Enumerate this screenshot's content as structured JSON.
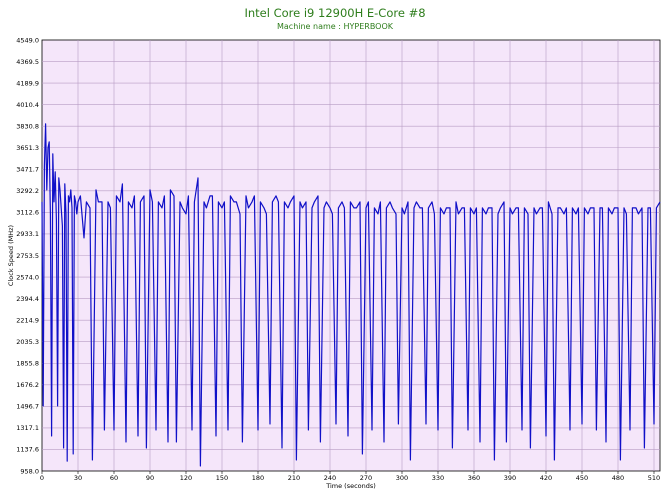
{
  "chart_data": {
    "type": "line",
    "title": "Intel Core i9 12900H E-Core #8",
    "subtitle": "Machine name : HYPERBOOK",
    "xlabel": "Time (seconds)",
    "ylabel": "Clock Speed (MHz)",
    "xlim": [
      0,
      515
    ],
    "ylim": [
      958.0,
      4549.0
    ],
    "xticks": [
      "0",
      "30",
      "60",
      "90",
      "120",
      "150",
      "180",
      "210",
      "240",
      "270",
      "300",
      "330",
      "360",
      "390",
      "420",
      "450",
      "480",
      "510"
    ],
    "yticks": [
      "958.0",
      "1137.6",
      "1317.1",
      "1496.7",
      "1676.2",
      "1855.8",
      "2035.3",
      "2214.9",
      "2394.4",
      "2574.0",
      "2753.5",
      "2933.1",
      "3112.6",
      "3292.2",
      "3471.7",
      "3651.3",
      "3830.8",
      "4010.4",
      "4189.9",
      "4369.5",
      "4549.0"
    ],
    "grid": true,
    "legend": "none",
    "plot_bg": "#f5e6fa",
    "grid_color": "#b89cc4",
    "line_color": "#1010c8",
    "series": [
      {
        "x": [
          0,
          1,
          2,
          3,
          4,
          5,
          6,
          7,
          8,
          9,
          10,
          11,
          12,
          13,
          14,
          15,
          16,
          17,
          18,
          19,
          20,
          21,
          22,
          23,
          24,
          25,
          26,
          27,
          28,
          29,
          30,
          32,
          35,
          37,
          40,
          42,
          45,
          47,
          50,
          52,
          55,
          57,
          60,
          62,
          65,
          67,
          70,
          72,
          75,
          77,
          80,
          82,
          85,
          87,
          90,
          92,
          95,
          97,
          100,
          102,
          105,
          107,
          110,
          112,
          115,
          117,
          120,
          122,
          125,
          127,
          130,
          132,
          135,
          137,
          140,
          142,
          145,
          147,
          150,
          152,
          155,
          157,
          160,
          162,
          165,
          167,
          170,
          172,
          175,
          177,
          180,
          182,
          185,
          187,
          190,
          192,
          195,
          197,
          200,
          202,
          205,
          207,
          210,
          212,
          215,
          217,
          220,
          222,
          225,
          227,
          230,
          232,
          235,
          237,
          240,
          242,
          245,
          247,
          250,
          252,
          255,
          257,
          260,
          262,
          265,
          267,
          270,
          272,
          275,
          277,
          280,
          282,
          285,
          287,
          290,
          292,
          295,
          297,
          300,
          302,
          305,
          307,
          310,
          312,
          315,
          317,
          320,
          322,
          325,
          327,
          330,
          332,
          335,
          337,
          340,
          342,
          345,
          347,
          350,
          352,
          355,
          357,
          360,
          362,
          365,
          367,
          370,
          372,
          375,
          377,
          380,
          382,
          385,
          387,
          390,
          392,
          395,
          397,
          400,
          402,
          405,
          407,
          410,
          412,
          415,
          417,
          420,
          422,
          425,
          427,
          430,
          432,
          435,
          437,
          440,
          442,
          445,
          447,
          450,
          452,
          455,
          457,
          460,
          462,
          465,
          467,
          470,
          472,
          475,
          477,
          480,
          482,
          485,
          487,
          490,
          492,
          495,
          497,
          500,
          502,
          505,
          507,
          510,
          512,
          515
        ],
        "y": [
          3200,
          1500,
          3500,
          3850,
          3300,
          3650,
          3700,
          3100,
          1250,
          3600,
          3200,
          3450,
          3050,
          1500,
          3400,
          3300,
          3150,
          3000,
          1150,
          3350,
          3100,
          1040,
          3250,
          3200,
          3300,
          3150,
          1100,
          3250,
          3200,
          3100,
          3200,
          3250,
          2900,
          3200,
          3150,
          1050,
          3300,
          3200,
          3200,
          1300,
          3200,
          3150,
          1300,
          3250,
          3200,
          3350,
          1200,
          3200,
          3150,
          3250,
          1250,
          3200,
          3250,
          1150,
          3300,
          3200,
          1300,
          3200,
          3150,
          3250,
          1200,
          3300,
          3250,
          1200,
          3200,
          3150,
          3100,
          3250,
          1300,
          3200,
          3400,
          1000,
          3200,
          3150,
          3250,
          3250,
          1250,
          3200,
          3150,
          3200,
          1300,
          3250,
          3200,
          3200,
          3100,
          1200,
          3250,
          3150,
          3200,
          3250,
          1300,
          3200,
          3150,
          3100,
          1350,
          3200,
          3250,
          3200,
          1150,
          3200,
          3150,
          3200,
          3250,
          1050,
          3200,
          3150,
          3200,
          1300,
          3150,
          3200,
          3250,
          1200,
          3150,
          3200,
          3150,
          3100,
          1350,
          3150,
          3200,
          3150,
          1250,
          3200,
          3150,
          3150,
          3200,
          1100,
          3150,
          3200,
          1300,
          3150,
          3100,
          3200,
          1200,
          3150,
          3200,
          3150,
          3100,
          1350,
          3150,
          3100,
          3200,
          1050,
          3150,
          3200,
          3150,
          3150,
          1350,
          3150,
          3200,
          3100,
          1300,
          3150,
          3100,
          3150,
          3150,
          1150,
          3200,
          3100,
          3150,
          3150,
          1300,
          3150,
          3100,
          3150,
          1200,
          3150,
          3100,
          3150,
          3150,
          1050,
          3100,
          3150,
          3200,
          1200,
          3150,
          3100,
          3150,
          3150,
          1300,
          3150,
          3100,
          1150,
          3150,
          3100,
          3150,
          3150,
          1250,
          3200,
          3100,
          1050,
          3150,
          3150,
          3100,
          3150,
          1300,
          3150,
          3100,
          3150,
          1350,
          3150,
          3100,
          3150,
          3150,
          1300,
          3150,
          3150,
          1200,
          3150,
          3100,
          3150,
          3150,
          1050,
          3150,
          3100,
          1300,
          3150,
          3150,
          3100,
          3150,
          1150,
          3150,
          3150,
          1350,
          3150,
          3200
        ]
      }
    ]
  }
}
